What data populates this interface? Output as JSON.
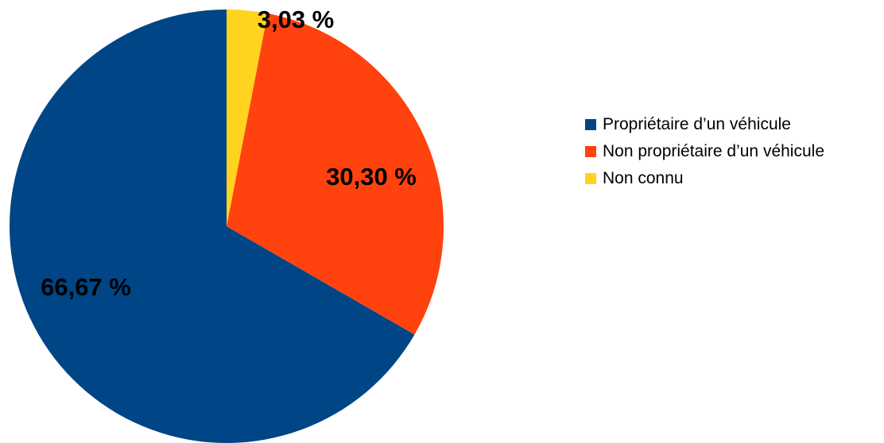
{
  "chart_data": {
    "type": "pie",
    "title": "",
    "legend_position": "right",
    "slices": [
      {
        "name": "Propriétaire d’un véhicule",
        "value": 66.67,
        "label": "66,67 %",
        "color": "#004586"
      },
      {
        "name": "Non propriétaire d’un véhicule",
        "value": 30.3,
        "label": "30,30 %",
        "color": "#ff420e"
      },
      {
        "name": "Non connu",
        "value": 3.03,
        "label": "3,03 %",
        "color": "#ffd320"
      }
    ]
  }
}
